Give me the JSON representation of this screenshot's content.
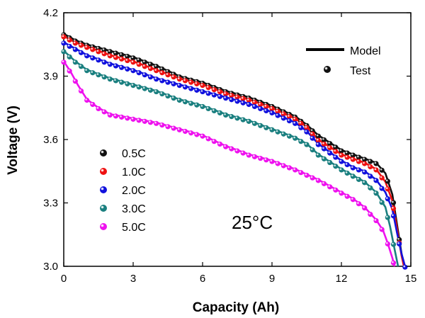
{
  "chart_data": {
    "type": "line",
    "xlabel": "Capacity (Ah)",
    "ylabel": "Voltage (V)",
    "xlim": [
      0,
      15
    ],
    "ylim": [
      3.0,
      4.2
    ],
    "xticks": [
      "0",
      "3",
      "6",
      "9",
      "12",
      "15"
    ],
    "yticks": [
      "3.0",
      "3.3",
      "3.6",
      "3.9",
      "4.2"
    ],
    "annotation": "25°C",
    "legend_model": "Model",
    "legend_test": "Test",
    "legend_position": "top-right",
    "series": [
      {
        "name": "0.5C",
        "color": "#111111",
        "x": [
          0,
          0.5,
          1,
          2,
          3,
          4,
          5,
          6,
          7,
          8,
          9,
          10,
          10.5,
          11,
          12,
          12.5,
          13,
          13.5,
          13.9,
          14.2,
          14.4,
          14.6,
          14.7
        ],
        "y": [
          4.1,
          4.07,
          4.05,
          4.02,
          3.99,
          3.95,
          3.9,
          3.87,
          3.83,
          3.8,
          3.76,
          3.71,
          3.67,
          3.62,
          3.55,
          3.53,
          3.51,
          3.49,
          3.44,
          3.34,
          3.2,
          3.06,
          3.0
        ]
      },
      {
        "name": "1.0C",
        "color": "#ee1111",
        "x": [
          0,
          0.5,
          1,
          2,
          3,
          4,
          5,
          6,
          7,
          8,
          9,
          10,
          10.5,
          11,
          12,
          12.5,
          13,
          13.5,
          13.9,
          14.2,
          14.4,
          14.6,
          14.7
        ],
        "y": [
          4.09,
          4.06,
          4.04,
          4.0,
          3.97,
          3.93,
          3.89,
          3.86,
          3.82,
          3.79,
          3.75,
          3.7,
          3.66,
          3.6,
          3.53,
          3.51,
          3.49,
          3.46,
          3.4,
          3.31,
          3.18,
          3.05,
          3.0
        ]
      },
      {
        "name": "2.0C",
        "color": "#1111dd",
        "x": [
          0,
          0.5,
          1,
          2,
          3,
          4,
          5,
          6,
          7,
          8,
          9,
          10,
          10.5,
          11,
          12,
          12.5,
          13,
          13.5,
          13.9,
          14.2,
          14.4,
          14.6,
          14.75
        ],
        "y": [
          4.06,
          4.03,
          4.0,
          3.96,
          3.93,
          3.89,
          3.86,
          3.83,
          3.8,
          3.77,
          3.73,
          3.68,
          3.64,
          3.58,
          3.5,
          3.47,
          3.45,
          3.41,
          3.35,
          3.27,
          3.16,
          3.06,
          3.0
        ]
      },
      {
        "name": "3.0C",
        "color": "#1a7f7f",
        "x": [
          0,
          0.5,
          1,
          2,
          3,
          4,
          5,
          6,
          7,
          8,
          9,
          10,
          10.5,
          11,
          12,
          12.5,
          13,
          13.5,
          13.9,
          14.1,
          14.3,
          14.45
        ],
        "y": [
          4.02,
          3.97,
          3.93,
          3.89,
          3.86,
          3.83,
          3.79,
          3.76,
          3.72,
          3.69,
          3.65,
          3.61,
          3.58,
          3.53,
          3.46,
          3.43,
          3.4,
          3.35,
          3.28,
          3.19,
          3.08,
          3.0
        ]
      },
      {
        "name": "5.0C",
        "color": "#ee11ee",
        "x": [
          0,
          0.3,
          0.6,
          1,
          1.5,
          2,
          2.5,
          3,
          3.5,
          4,
          5,
          6,
          7,
          8,
          9,
          10,
          11,
          12,
          12.5,
          13,
          13.5,
          13.8,
          14.0,
          14.2,
          14.3
        ],
        "y": [
          3.97,
          3.92,
          3.86,
          3.79,
          3.75,
          3.72,
          3.71,
          3.7,
          3.69,
          3.68,
          3.65,
          3.62,
          3.57,
          3.53,
          3.5,
          3.46,
          3.41,
          3.35,
          3.32,
          3.28,
          3.22,
          3.17,
          3.11,
          3.04,
          3.0
        ]
      }
    ]
  }
}
